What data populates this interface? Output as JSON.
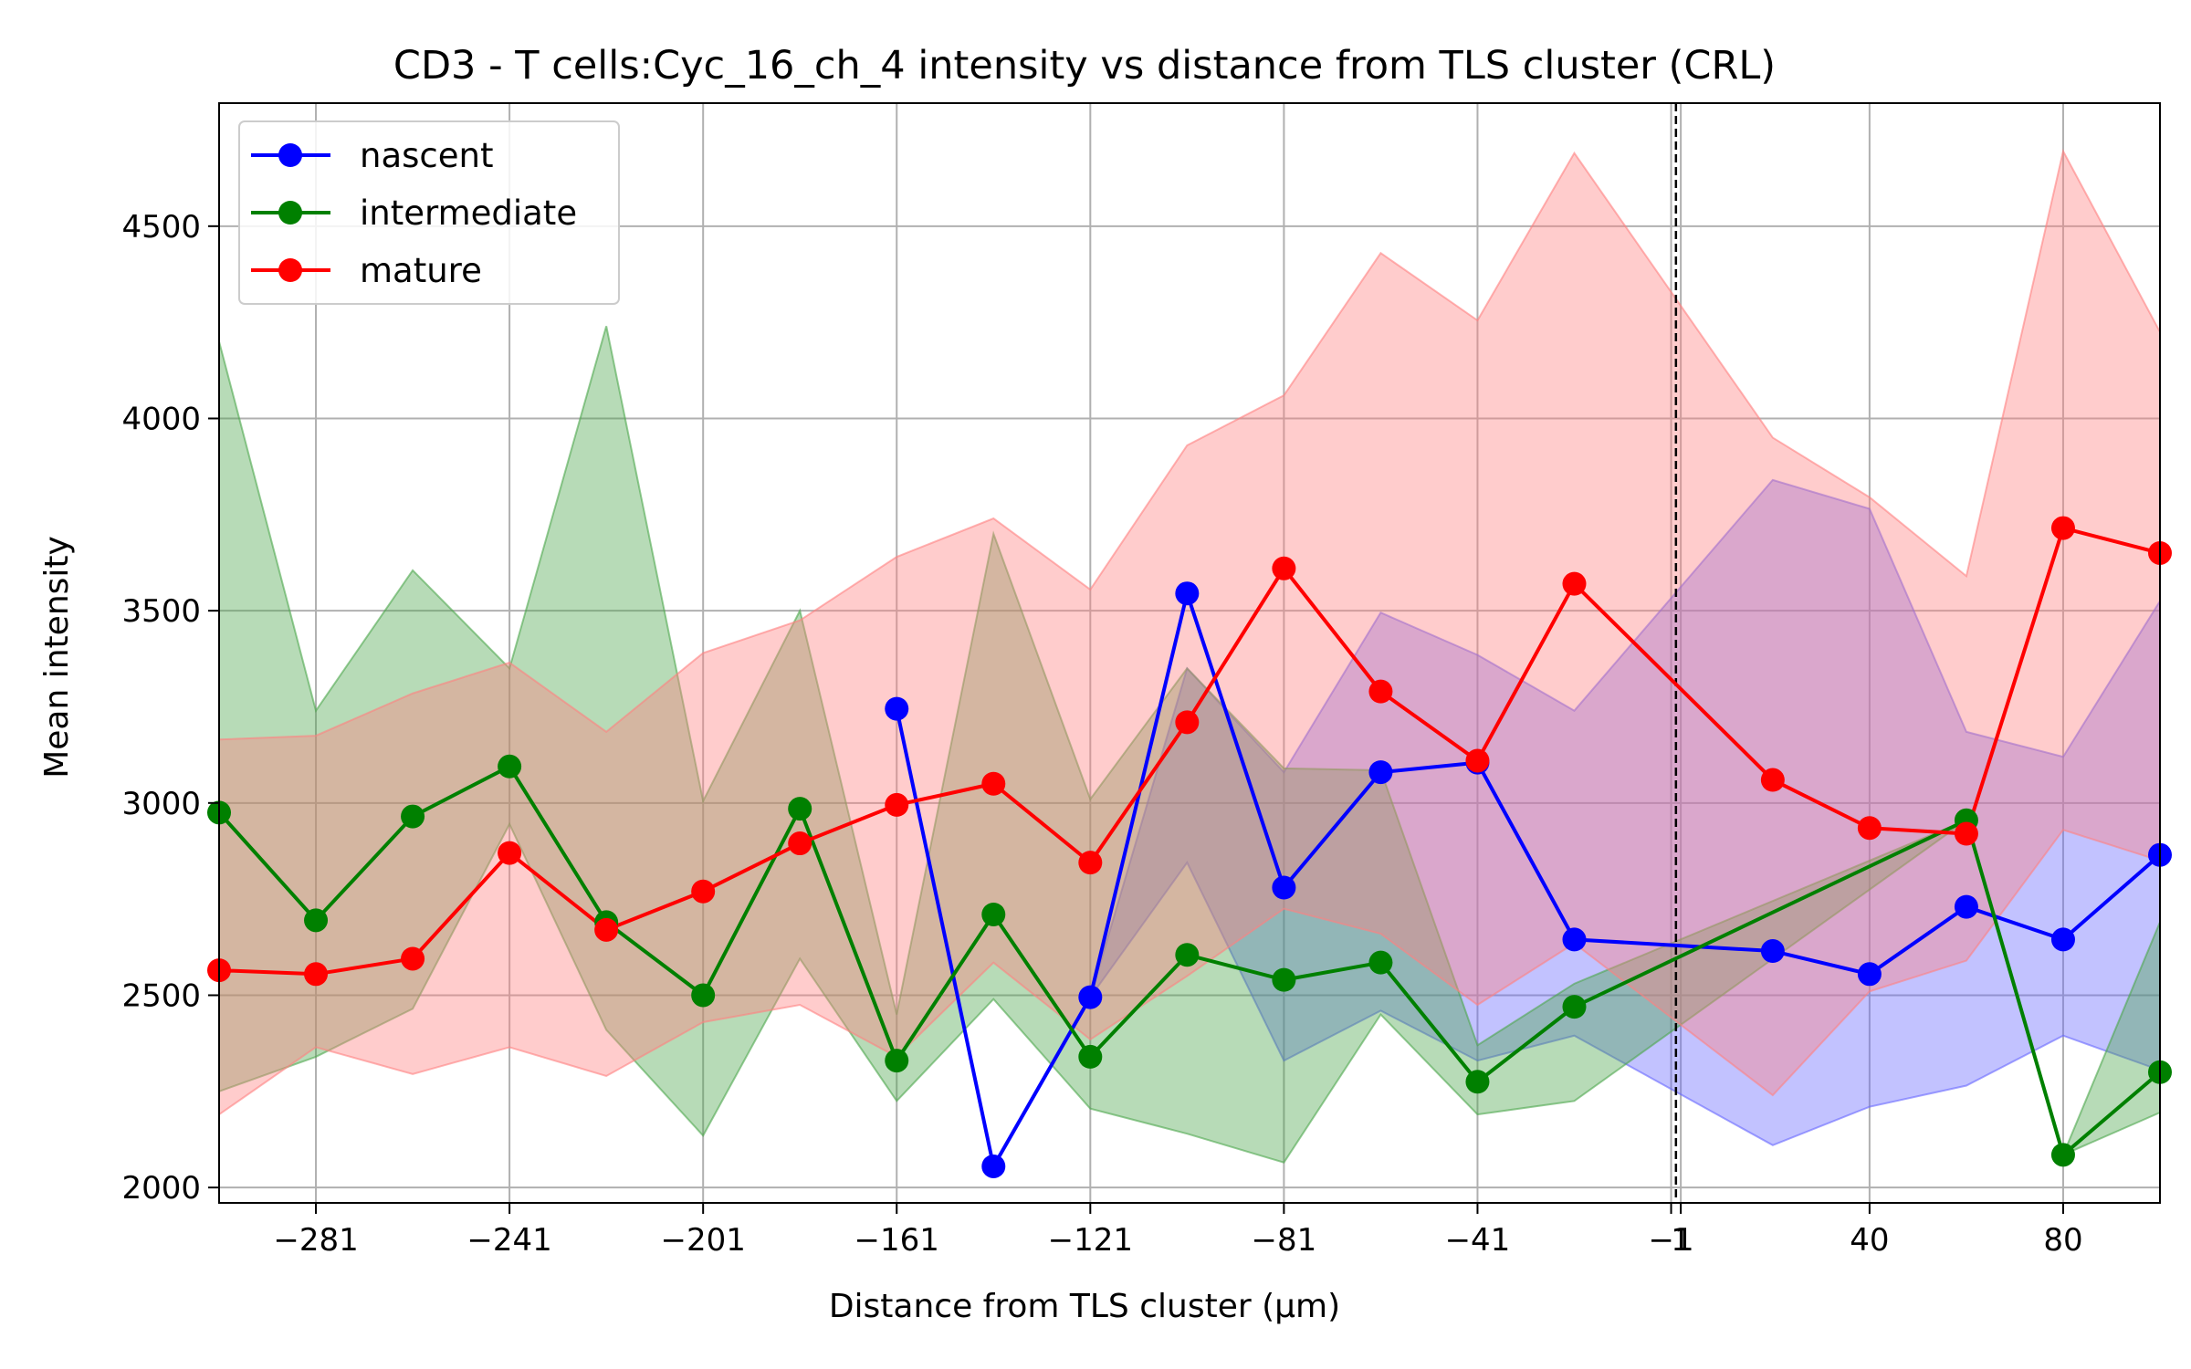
{
  "chart_data": {
    "type": "line",
    "title": "CD3 - T cells:Cyc_16_ch_4 intensity vs distance from TLS cluster (CRL)",
    "xlabel": "Distance from TLS cluster (μm)",
    "ylabel": "Mean intensity",
    "xlim": [
      -301,
      100
    ],
    "ylim": [
      1960,
      4820
    ],
    "x_ticks": [
      -281,
      -241,
      -201,
      -161,
      -121,
      -81,
      -41,
      -1,
      1,
      40,
      80
    ],
    "y_ticks": [
      2000,
      2500,
      3000,
      3500,
      4000,
      4500
    ],
    "grid": true,
    "legend_position": "upper-left",
    "reference_line_x": 0,
    "series": [
      {
        "name": "nascent",
        "color": "#0000ff",
        "band_color": "#6666ff",
        "x": [
          -161,
          -141,
          -121,
          -101,
          -81,
          -61,
          -41,
          -21,
          20,
          40,
          60,
          80,
          100
        ],
        "values": [
          3245,
          2055,
          2495,
          3545,
          2780,
          3080,
          3105,
          2645,
          2615,
          2555,
          2730,
          2645,
          2865
        ],
        "lower": [
          3245,
          2055,
          2495,
          2845,
          2330,
          2460,
          2330,
          2395,
          2110,
          2210,
          2265,
          2395,
          2305
        ],
        "upper": [
          3245,
          2055,
          2495,
          3350,
          3080,
          3495,
          3385,
          3240,
          3840,
          3765,
          3185,
          3120,
          3525
        ]
      },
      {
        "name": "intermediate",
        "color": "#008000",
        "band_color": "#4ca64c",
        "x": [
          -301,
          -281,
          -261,
          -241,
          -221,
          -201,
          -181,
          -161,
          -141,
          -121,
          -101,
          -81,
          -61,
          -41,
          -21,
          60,
          80,
          100
        ],
        "values": [
          2975,
          2695,
          2965,
          3095,
          2690,
          2500,
          2985,
          2330,
          2710,
          2340,
          2605,
          2540,
          2585,
          2275,
          2470,
          2955,
          2085,
          2300
        ],
        "lower": [
          2250,
          2340,
          2465,
          2945,
          2410,
          2135,
          2595,
          2225,
          2490,
          2205,
          2140,
          2065,
          2450,
          2190,
          2225,
          2955,
          2085,
          2195
        ],
        "upper": [
          4200,
          3240,
          3605,
          3350,
          4240,
          3005,
          3500,
          2450,
          3700,
          3010,
          3350,
          3090,
          3085,
          2370,
          2530,
          2955,
          2085,
          2690
        ]
      },
      {
        "name": "mature",
        "color": "#ff0000",
        "band_color": "#ff8080",
        "x": [
          -301,
          -281,
          -261,
          -241,
          -221,
          -201,
          -181,
          -161,
          -141,
          -121,
          -101,
          -81,
          -61,
          -41,
          -21,
          20,
          40,
          60,
          80,
          100
        ],
        "values": [
          2565,
          2555,
          2595,
          2870,
          2670,
          2770,
          2895,
          2995,
          3050,
          2845,
          3210,
          3610,
          3290,
          3110,
          3570,
          3060,
          2935,
          2920,
          3715,
          3650
        ],
        "lower": [
          2190,
          2365,
          2295,
          2365,
          2290,
          2430,
          2475,
          2340,
          2585,
          2385,
          2550,
          2725,
          2660,
          2475,
          2635,
          2240,
          2510,
          2590,
          2930,
          2850
        ],
        "upper": [
          3165,
          3175,
          3285,
          3365,
          3185,
          3390,
          3475,
          3640,
          3740,
          3555,
          3930,
          4060,
          4430,
          4255,
          4690,
          3950,
          3795,
          3590,
          4695,
          4225
        ]
      }
    ]
  }
}
